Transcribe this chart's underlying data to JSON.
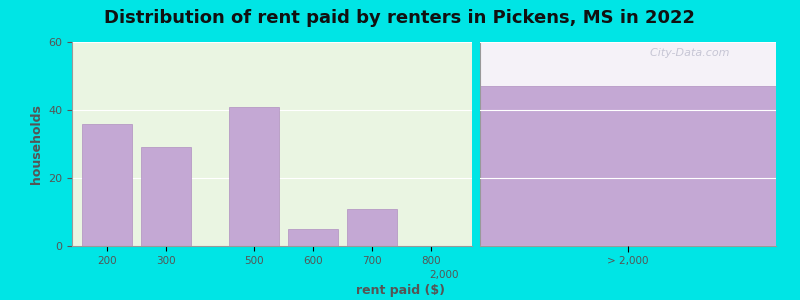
{
  "title": "Distribution of rent paid by renters in Pickens, MS in 2022",
  "xlabel": "rent paid ($)",
  "ylabel": "households",
  "background_outer": "#00e5e5",
  "background_inner": "#eaf5e2",
  "bar_color": "#c4a8d4",
  "bar_edgecolor": "#b090c0",
  "right_bg_color": "#c4a8d4",
  "right_white_color": "#f5f2f8",
  "values": [
    36,
    29,
    41,
    5,
    11,
    47
  ],
  "categories": [
    "200",
    "300",
    "500",
    "600",
    "700",
    "800",
    "> 2,000"
  ],
  "ylim": [
    0,
    60
  ],
  "yticks": [
    0,
    20,
    40,
    60
  ],
  "title_fontsize": 13,
  "axis_label_fontsize": 9,
  "watermark": "  City-Data.com"
}
